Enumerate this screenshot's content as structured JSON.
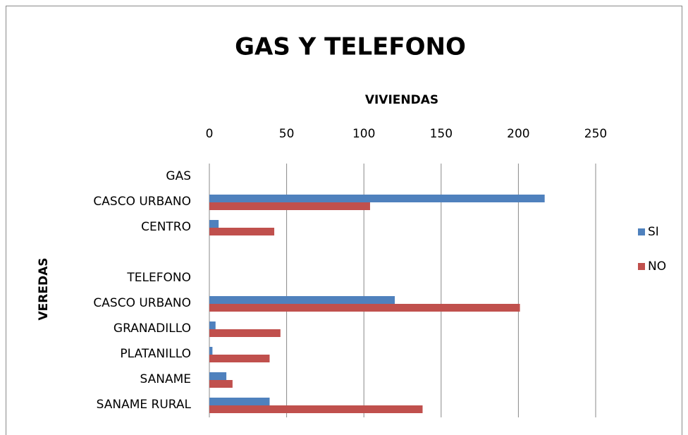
{
  "chart_data": {
    "type": "bar",
    "orientation": "horizontal",
    "title": "GAS Y TELEFONO",
    "x_label": "VIVIENDAS",
    "y_label": "VEREDAS",
    "categories": [
      "GAS",
      "CASCO URBANO",
      "CENTRO",
      null,
      "TELEFONO",
      "CASCO URBANO",
      "GRANADILLO",
      "PLATANILLO",
      "SANAME",
      "SANAME RURAL"
    ],
    "series": [
      {
        "name": "SI",
        "color": "#4f81bd",
        "values": [
          null,
          217,
          6,
          null,
          null,
          120,
          4,
          2,
          11,
          39
        ]
      },
      {
        "name": "NO",
        "color": "#c0504d",
        "values": [
          null,
          104,
          42,
          null,
          null,
          201,
          46,
          39,
          15,
          138
        ]
      }
    ],
    "xlim": [
      0,
      250
    ],
    "xticks": [
      0,
      50,
      100,
      150,
      200,
      250
    ],
    "grid": true,
    "legend": "right"
  }
}
